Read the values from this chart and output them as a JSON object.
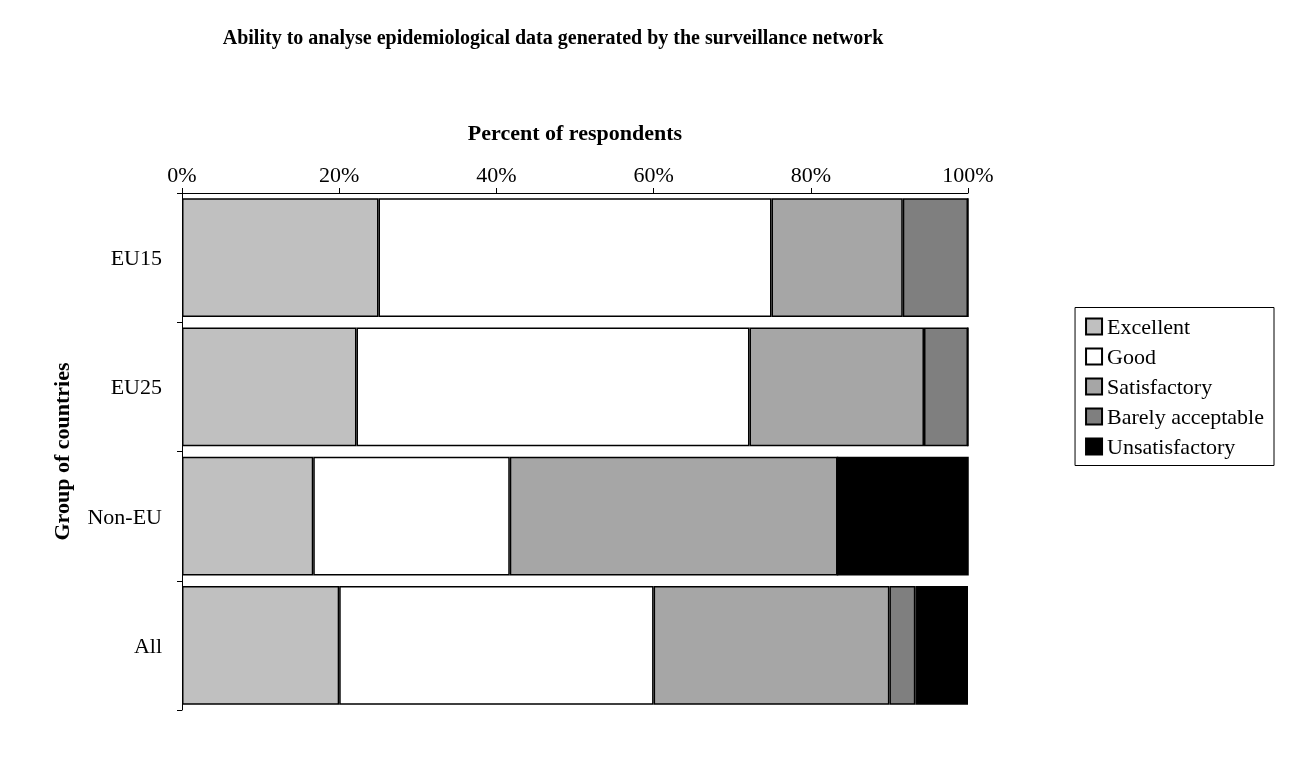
{
  "chart_data": {
    "type": "bar",
    "orientation": "horizontal",
    "stacked": true,
    "title": "Ability to analyse epidemiological data generated by the surveillance network",
    "xlabel": "Percent of respondents",
    "ylabel": "Group of countries",
    "categories": [
      "EU15",
      "EU25",
      "Non-EU",
      "All"
    ],
    "series": [
      {
        "name": "Excellent",
        "color": "#c0c0c0",
        "values": [
          25,
          22.2,
          16.7,
          20
        ]
      },
      {
        "name": "Good",
        "color": "#ffffff",
        "values": [
          50,
          50,
          25,
          40
        ]
      },
      {
        "name": "Satisfactory",
        "color": "#a6a6a6",
        "values": [
          16.7,
          22.2,
          41.7,
          30
        ]
      },
      {
        "name": "Barely acceptable",
        "color": "#7f7f7f",
        "values": [
          8.3,
          5.6,
          0,
          3.3
        ]
      },
      {
        "name": "Unsatisfactory",
        "color": "#000000",
        "values": [
          0,
          0,
          16.7,
          6.7
        ]
      }
    ],
    "xlim": [
      0,
      100
    ],
    "xticks": [
      {
        "value": 0,
        "label": "0%"
      },
      {
        "value": 20,
        "label": "20%"
      },
      {
        "value": 40,
        "label": "40%"
      },
      {
        "value": 60,
        "label": "60%"
      },
      {
        "value": 80,
        "label": "80%"
      },
      {
        "value": 100,
        "label": "100%"
      }
    ],
    "grid": false,
    "legend": "right"
  }
}
